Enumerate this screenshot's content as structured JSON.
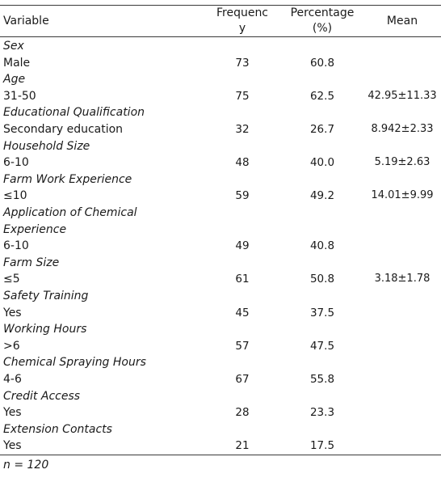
{
  "headers": {
    "variable": "Variable",
    "frequency_line1": "Frequenc",
    "frequency_line2": "y",
    "percentage_line1": "Percentage",
    "percentage_line2": "(%)",
    "mean": "Mean"
  },
  "rows": [
    {
      "type": "category",
      "label": "Sex"
    },
    {
      "type": "data",
      "label": "Male",
      "frequency": "73",
      "percentage": "60.8",
      "mean": ""
    },
    {
      "type": "category",
      "label": "Age"
    },
    {
      "type": "data",
      "label": "31-50",
      "frequency": "75",
      "percentage": "62.5",
      "mean": "42.95±11.33"
    },
    {
      "type": "category",
      "label": "Educational Qualification"
    },
    {
      "type": "data",
      "label": "Secondary education",
      "frequency": "32",
      "percentage": "26.7",
      "mean": "8.942±2.33"
    },
    {
      "type": "category",
      "label": "Household Size"
    },
    {
      "type": "data",
      "label": "6-10",
      "frequency": "48",
      "percentage": "40.0",
      "mean": "5.19±2.63"
    },
    {
      "type": "category",
      "label": "Farm Work Experience"
    },
    {
      "type": "data",
      "label": "≤10",
      "frequency": "59",
      "percentage": "49.2",
      "mean": "14.01±9.99"
    },
    {
      "type": "category",
      "label": "Application of Chemical"
    },
    {
      "type": "category",
      "label": "Experience"
    },
    {
      "type": "data",
      "label": "6-10",
      "frequency": "49",
      "percentage": "40.8",
      "mean": ""
    },
    {
      "type": "category",
      "label": "Farm Size"
    },
    {
      "type": "data",
      "label": "≤5",
      "frequency": "61",
      "percentage": "50.8",
      "mean": "3.18±1.78"
    },
    {
      "type": "category",
      "label": "Safety Training"
    },
    {
      "type": "data",
      "label": "Yes",
      "frequency": "45",
      "percentage": "37.5",
      "mean": ""
    },
    {
      "type": "category",
      "label": "Working Hours"
    },
    {
      "type": "data",
      "label": ">6",
      "frequency": "57",
      "percentage": "47.5",
      "mean": ""
    },
    {
      "type": "category",
      "label": "Chemical Spraying Hours"
    },
    {
      "type": "data",
      "label": "4-6",
      "frequency": "67",
      "percentage": "55.8",
      "mean": ""
    },
    {
      "type": "category",
      "label": "Credit Access"
    },
    {
      "type": "data",
      "label": "Yes",
      "frequency": "28",
      "percentage": "23.3",
      "mean": ""
    },
    {
      "type": "category",
      "label": "Extension Contacts"
    },
    {
      "type": "data",
      "label": "Yes",
      "frequency": "21",
      "percentage": "17.5",
      "mean": ""
    }
  ],
  "note": "n = 120"
}
